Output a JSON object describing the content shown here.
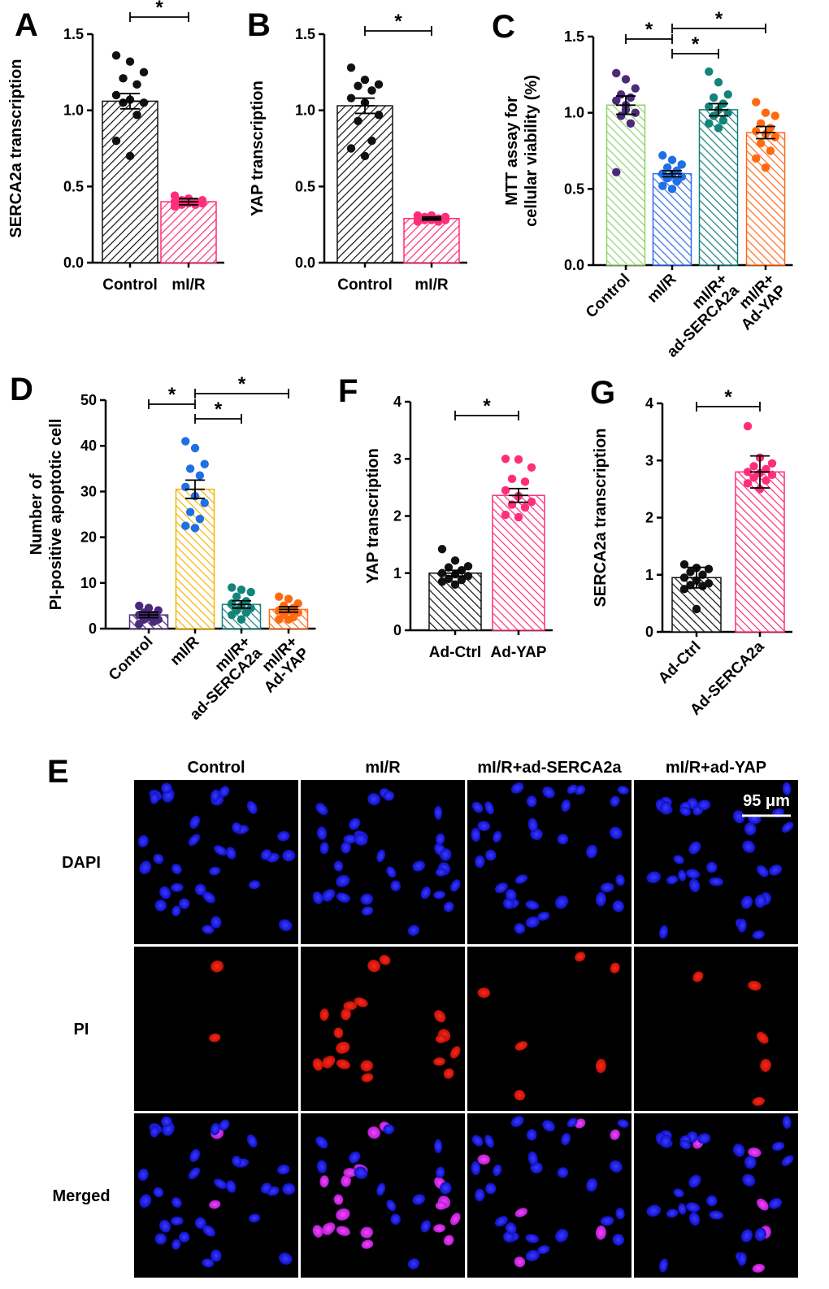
{
  "colors": {
    "black": "#111111",
    "pink": "#ff2d7a",
    "control_green": "#8fd16a",
    "mir_blue": "#2f6fe6",
    "serca_teal": "#177f7a",
    "yap_orange": "#ff6a1a",
    "d_control_purple": "#4a2b72",
    "d_mir_yellow": "#f4b400",
    "purple_dot": "#4b2a7a",
    "blue_dot": "#1f6fe5",
    "teal_dot": "#138479",
    "orange_dot": "#ff6a10"
  },
  "chart_data": [
    {
      "id": "A",
      "label": "A",
      "type": "bar",
      "ylabel": "SERCA2a transcription",
      "ylim": [
        0,
        1.5
      ],
      "yticks": [
        "0.0",
        "0.5",
        "1.0",
        "1.5"
      ],
      "categories": [
        "Control",
        "mI/R"
      ],
      "values": [
        1.06,
        0.4
      ],
      "errors": [
        0.05,
        0.02
      ],
      "colors": [
        "black",
        "pink"
      ],
      "dot_colors": [
        "black",
        "pink"
      ],
      "points": [
        [
          1.36,
          1.32,
          1.25,
          1.21,
          1.17,
          1.1,
          1.07,
          1.05,
          1.05,
          0.97,
          0.8,
          0.7
        ],
        [
          0.44,
          0.42,
          0.41,
          0.41,
          0.4,
          0.4,
          0.39,
          0.39,
          0.38,
          0.38,
          0.37,
          0.42
        ]
      ],
      "significance": [
        {
          "from": 0,
          "to": 1,
          "symbol": "*"
        }
      ]
    },
    {
      "id": "B",
      "label": "B",
      "type": "bar",
      "ylabel": "YAP transcription",
      "ylim": [
        0,
        1.5
      ],
      "yticks": [
        "0.0",
        "0.5",
        "1.0",
        "1.5"
      ],
      "categories": [
        "Control",
        "mI/R"
      ],
      "values": [
        1.03,
        0.29
      ],
      "errors": [
        0.05,
        0.01
      ],
      "colors": [
        "black",
        "pink"
      ],
      "dot_colors": [
        "black",
        "pink"
      ],
      "points": [
        [
          1.28,
          1.2,
          1.17,
          1.16,
          1.13,
          1.08,
          1.05,
          0.97,
          0.93,
          0.8,
          0.75,
          0.7
        ],
        [
          0.31,
          0.31,
          0.3,
          0.3,
          0.29,
          0.29,
          0.28,
          0.28,
          0.28,
          0.27,
          0.27,
          0.3
        ]
      ],
      "significance": [
        {
          "from": 0,
          "to": 1,
          "symbol": "*"
        }
      ]
    },
    {
      "id": "C",
      "label": "C",
      "type": "bar",
      "ylabel": "MTT assay for cellular viability (%)",
      "ylabel_lines": [
        "MTT assay for",
        "cellular viability (%)"
      ],
      "ylim": [
        0,
        1.5
      ],
      "yticks": [
        "0.0",
        "0.5",
        "1.0",
        "1.5"
      ],
      "categories": [
        "Control",
        "mI/R",
        "mI/R+ ad-SERCA2a",
        "mI/R+ Ad-YAP"
      ],
      "category_lines": [
        [
          "Control"
        ],
        [
          "mI/R"
        ],
        [
          "mI/R+",
          "ad-SERCA2a"
        ],
        [
          "mI/R+",
          "Ad-YAP"
        ]
      ],
      "values": [
        1.05,
        0.6,
        1.02,
        0.87
      ],
      "errors": [
        0.06,
        0.02,
        0.04,
        0.04
      ],
      "colors": [
        "control_green",
        "mir_blue",
        "serca_teal",
        "yap_orange"
      ],
      "dot_colors": [
        "purple_dot",
        "blue_dot",
        "teal_dot",
        "orange_dot"
      ],
      "points": [
        [
          1.26,
          1.22,
          1.16,
          1.12,
          1.1,
          1.08,
          1.05,
          1.0,
          0.98,
          0.93,
          0.61,
          1.02
        ],
        [
          0.72,
          0.69,
          0.66,
          0.64,
          0.62,
          0.6,
          0.59,
          0.58,
          0.57,
          0.55,
          0.52,
          0.5
        ],
        [
          1.27,
          1.2,
          1.12,
          1.1,
          1.06,
          1.04,
          1.02,
          1.0,
          0.98,
          0.95,
          0.93,
          0.9
        ],
        [
          1.07,
          1.0,
          0.98,
          0.93,
          0.9,
          0.88,
          0.86,
          0.84,
          0.8,
          0.75,
          0.7,
          0.64
        ]
      ],
      "significance": [
        {
          "from": 0,
          "to": 1,
          "symbol": "*"
        },
        {
          "from": 1,
          "to": 2,
          "symbol": "*"
        },
        {
          "from": 1,
          "to": 3,
          "symbol": "*"
        }
      ]
    },
    {
      "id": "D",
      "label": "D",
      "type": "bar",
      "ylabel": "Number of PI-positive apoptotic cell",
      "ylabel_lines": [
        "Number of",
        "PI-positive apoptotic cell"
      ],
      "ylim": [
        0,
        50
      ],
      "yticks": [
        "0",
        "10",
        "20",
        "30",
        "40",
        "50"
      ],
      "categories": [
        "Control",
        "mI/R",
        "mI/R+ ad-SERCA2a",
        "mI/R+ Ad-YAP"
      ],
      "category_lines": [
        [
          "Control"
        ],
        [
          "mI/R"
        ],
        [
          "mI/R+",
          "ad-SERCA2a"
        ],
        [
          "mI/R+",
          "Ad-YAP"
        ]
      ],
      "values": [
        3.0,
        30.5,
        5.3,
        4.2
      ],
      "errors": [
        0.6,
        2.0,
        0.8,
        0.6
      ],
      "colors": [
        "d_control_purple",
        "d_mir_yellow",
        "serca_teal",
        "yap_orange"
      ],
      "dot_colors": [
        "purple_dot",
        "blue_dot",
        "teal_dot",
        "orange_dot"
      ],
      "points": [
        [
          5.0,
          4.5,
          4.0,
          3.5,
          3.0,
          3.0,
          2.5,
          2.0,
          2.0,
          1.5,
          1.0,
          4.5
        ],
        [
          41.0,
          39.5,
          36.0,
          35.0,
          33.5,
          31.0,
          29.0,
          27.5,
          25.5,
          24.0,
          22.5,
          22.0
        ],
        [
          9.0,
          8.5,
          8.0,
          7.0,
          6.0,
          5.5,
          5.0,
          4.5,
          4.0,
          3.5,
          3.0,
          2.0
        ],
        [
          7.0,
          6.5,
          5.5,
          5.0,
          4.5,
          4.0,
          4.0,
          3.5,
          3.0,
          2.5,
          2.0,
          2.0
        ]
      ],
      "significance": [
        {
          "from": 0,
          "to": 1,
          "symbol": "*"
        },
        {
          "from": 1,
          "to": 2,
          "symbol": "*"
        },
        {
          "from": 1,
          "to": 3,
          "symbol": "*"
        }
      ]
    },
    {
      "id": "F",
      "label": "F",
      "type": "bar",
      "ylabel": "YAP transcription",
      "ylim": [
        0,
        4
      ],
      "yticks": [
        "0",
        "1",
        "2",
        "3",
        "4"
      ],
      "categories": [
        "Ad-Ctrl",
        "Ad-YAP"
      ],
      "values": [
        1.0,
        2.36
      ],
      "errors": [
        0.05,
        0.12
      ],
      "colors": [
        "black",
        "pink"
      ],
      "dot_colors": [
        "black",
        "pink"
      ],
      "points": [
        [
          1.42,
          1.22,
          1.12,
          1.1,
          1.05,
          1.0,
          0.98,
          0.95,
          0.9,
          0.88,
          0.85,
          0.8
        ],
        [
          3.0,
          2.99,
          2.85,
          2.65,
          2.6,
          2.45,
          2.35,
          2.25,
          2.2,
          2.15,
          2.02,
          1.98
        ]
      ],
      "significance": [
        {
          "from": 0,
          "to": 1,
          "symbol": "*"
        }
      ]
    },
    {
      "id": "G",
      "label": "G",
      "type": "bar",
      "ylabel": "SERCA2a transcription",
      "ylim": [
        0,
        4
      ],
      "yticks": [
        "0",
        "1",
        "2",
        "3",
        "4"
      ],
      "categories": [
        "Ad-Ctrl",
        "Ad-SERCA2a"
      ],
      "values": [
        0.95,
        2.8
      ],
      "errors": [
        0.18,
        0.28
      ],
      "colors": [
        "black",
        "pink"
      ],
      "dot_colors": [
        "black",
        "pink"
      ],
      "points": [
        [
          1.18,
          1.12,
          1.1,
          1.05,
          1.0,
          0.95,
          0.9,
          0.85,
          0.82,
          0.8,
          0.75,
          0.4
        ],
        [
          3.6,
          3.05,
          2.95,
          2.9,
          2.85,
          2.8,
          2.78,
          2.75,
          2.7,
          2.65,
          2.6,
          2.5
        ]
      ],
      "significance": [
        {
          "from": 0,
          "to": 1,
          "symbol": "*"
        }
      ]
    }
  ],
  "micrographs": {
    "label": "E",
    "columns": [
      "Control",
      "mI/R",
      "mI/R+ad-SERCA2a",
      "mI/R+ad-YAP"
    ],
    "rows": [
      "DAPI",
      "PI",
      "Merged"
    ],
    "scale_bar": "95 μm"
  }
}
